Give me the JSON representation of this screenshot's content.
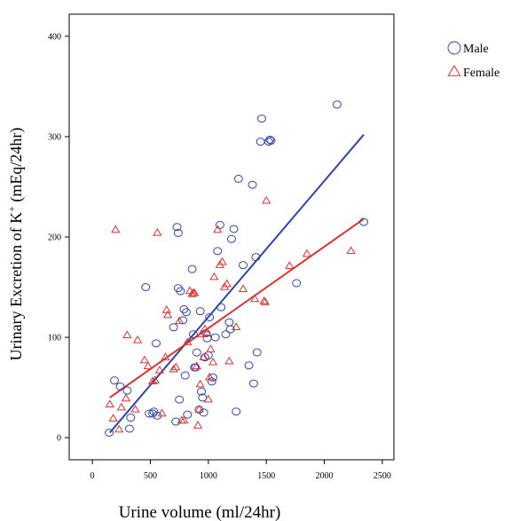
{
  "chart_data": {
    "type": "scatter",
    "xlabel": "Urine volume (ml/24hr)",
    "ylabel_prefix": "Urinary Excretion of K",
    "ylabel_sup": "+",
    "ylabel_suffix": " (mEq/24hr)",
    "xlim": [
      -200,
      2600
    ],
    "ylim": [
      -22,
      422
    ],
    "x_ticks": [
      0,
      500,
      1000,
      1500,
      2000,
      2500
    ],
    "y_ticks": [
      0,
      100,
      200,
      300,
      400
    ],
    "grid": false,
    "legend_position": "right",
    "series": [
      {
        "name": "Male",
        "marker": "circle",
        "color": "#3344aa",
        "points": [
          [
            145,
            5
          ],
          [
            190,
            57
          ],
          [
            240,
            51
          ],
          [
            300,
            47
          ],
          [
            320,
            9
          ],
          [
            330,
            20
          ],
          [
            460,
            150
          ],
          [
            490,
            24
          ],
          [
            520,
            24
          ],
          [
            530,
            26
          ],
          [
            550,
            94
          ],
          [
            560,
            22
          ],
          [
            700,
            110
          ],
          [
            720,
            16
          ],
          [
            730,
            210
          ],
          [
            740,
            204
          ],
          [
            740,
            149
          ],
          [
            750,
            38
          ],
          [
            760,
            146
          ],
          [
            780,
            117
          ],
          [
            790,
            128
          ],
          [
            800,
            62
          ],
          [
            810,
            125
          ],
          [
            820,
            23
          ],
          [
            860,
            168
          ],
          [
            870,
            103
          ],
          [
            880,
            70
          ],
          [
            890,
            70
          ],
          [
            900,
            85
          ],
          [
            920,
            28
          ],
          [
            930,
            126
          ],
          [
            940,
            46
          ],
          [
            950,
            40
          ],
          [
            960,
            25
          ],
          [
            970,
            80
          ],
          [
            980,
            104
          ],
          [
            990,
            99
          ],
          [
            1000,
            82
          ],
          [
            1010,
            120
          ],
          [
            1030,
            56
          ],
          [
            1040,
            60
          ],
          [
            1060,
            100
          ],
          [
            1080,
            186
          ],
          [
            1100,
            212
          ],
          [
            1110,
            130
          ],
          [
            1150,
            103
          ],
          [
            1180,
            115
          ],
          [
            1190,
            108
          ],
          [
            1200,
            198
          ],
          [
            1220,
            208
          ],
          [
            1240,
            26
          ],
          [
            1260,
            258
          ],
          [
            1300,
            172
          ],
          [
            1350,
            72
          ],
          [
            1380,
            252
          ],
          [
            1390,
            54
          ],
          [
            1410,
            180
          ],
          [
            1420,
            85
          ],
          [
            1450,
            295
          ],
          [
            1460,
            318
          ],
          [
            1520,
            295
          ],
          [
            1530,
            297
          ],
          [
            1540,
            296
          ],
          [
            1760,
            154
          ],
          [
            2110,
            332
          ],
          [
            2340,
            215
          ]
        ],
        "fit_line": [
          [
            150,
            5
          ],
          [
            2340,
            302
          ]
        ]
      },
      {
        "name": "Female",
        "marker": "triangle",
        "color": "#dd3333",
        "points": [
          [
            150,
            33
          ],
          [
            180,
            19
          ],
          [
            200,
            207
          ],
          [
            230,
            8
          ],
          [
            250,
            30
          ],
          [
            290,
            39
          ],
          [
            300,
            102
          ],
          [
            370,
            28
          ],
          [
            390,
            97
          ],
          [
            450,
            77
          ],
          [
            480,
            71
          ],
          [
            520,
            56
          ],
          [
            540,
            57
          ],
          [
            560,
            204
          ],
          [
            580,
            67
          ],
          [
            600,
            24
          ],
          [
            630,
            80
          ],
          [
            640,
            127
          ],
          [
            650,
            122
          ],
          [
            700,
            68
          ],
          [
            720,
            70
          ],
          [
            750,
            116
          ],
          [
            770,
            17
          ],
          [
            790,
            17
          ],
          [
            820,
            95
          ],
          [
            840,
            146
          ],
          [
            860,
            143
          ],
          [
            870,
            144
          ],
          [
            880,
            144
          ],
          [
            900,
            71
          ],
          [
            910,
            12
          ],
          [
            920,
            28
          ],
          [
            930,
            53
          ],
          [
            940,
            103
          ],
          [
            960,
            80
          ],
          [
            970,
            108
          ],
          [
            990,
            104
          ],
          [
            1000,
            38
          ],
          [
            1010,
            60
          ],
          [
            1020,
            88
          ],
          [
            1040,
            75
          ],
          [
            1050,
            160
          ],
          [
            1080,
            207
          ],
          [
            1100,
            172
          ],
          [
            1120,
            175
          ],
          [
            1140,
            150
          ],
          [
            1160,
            153
          ],
          [
            1180,
            76
          ],
          [
            1240,
            110
          ],
          [
            1300,
            148
          ],
          [
            1400,
            138
          ],
          [
            1480,
            136
          ],
          [
            1490,
            135
          ],
          [
            1500,
            236
          ],
          [
            1700,
            171
          ],
          [
            1850,
            183
          ],
          [
            2230,
            186
          ]
        ],
        "fit_line": [
          [
            150,
            40
          ],
          [
            2340,
            218
          ]
        ]
      }
    ]
  }
}
